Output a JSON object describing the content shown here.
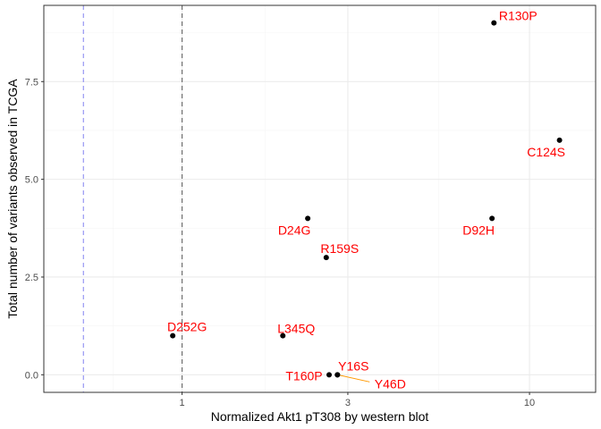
{
  "chart_data": {
    "type": "scatter",
    "title": "",
    "xlabel": "Normalized Akt1 pT308 by western blot",
    "ylabel": "Total number of variants observed in TCGA",
    "x_scale": "log10",
    "xlim": [
      0.4,
      15.5
    ],
    "ylim": [
      -0.45,
      9.45
    ],
    "x_ticks": [
      1,
      3,
      10
    ],
    "x_tick_labels": [
      "1",
      "3",
      "10"
    ],
    "y_ticks": [
      0,
      2.5,
      5,
      7.5
    ],
    "y_tick_labels": [
      "0.0",
      "2.5",
      "5.0",
      "7.5"
    ],
    "grid": true,
    "legend": "none",
    "reference_lines": [
      {
        "x": 0.52,
        "style": "dashed",
        "color": "#8c8cf2"
      },
      {
        "x": 1.0,
        "style": "dashed",
        "color": "#666666"
      }
    ],
    "points": [
      {
        "label": "R130P",
        "x": 7.9,
        "y": 9
      },
      {
        "label": "C124S",
        "x": 12.2,
        "y": 6
      },
      {
        "label": "D92H",
        "x": 7.8,
        "y": 4
      },
      {
        "label": "D24G",
        "x": 2.3,
        "y": 4
      },
      {
        "label": "R159S",
        "x": 2.6,
        "y": 3
      },
      {
        "label": "D252G",
        "x": 0.94,
        "y": 1
      },
      {
        "label": "L345Q",
        "x": 1.95,
        "y": 1
      },
      {
        "label": "T160P",
        "x": 2.65,
        "y": 0
      },
      {
        "label": "Y16S",
        "x": 2.8,
        "y": 0
      },
      {
        "label": "Y46D",
        "x": 2.8,
        "y": 0
      }
    ],
    "colors": {
      "point": "#000000",
      "label": "#ff0000",
      "leader_line": "#ff9900",
      "grid_major": "#ebebeb",
      "grid_minor": "#f5f5f5",
      "panel_border": "#333333"
    }
  }
}
